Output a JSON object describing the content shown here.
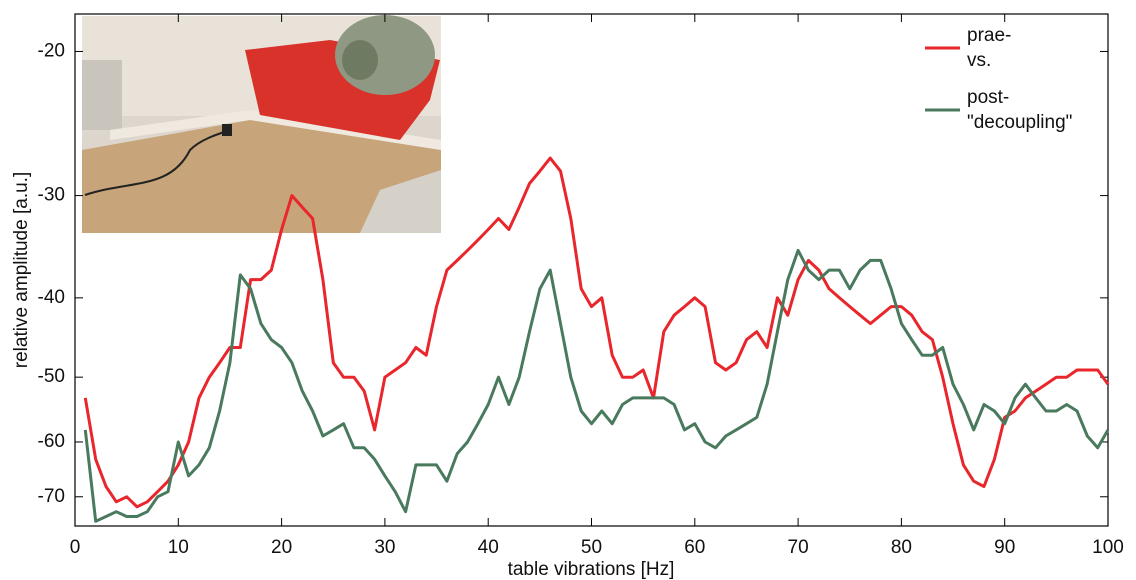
{
  "chart_data": {
    "type": "line",
    "x_label": "table vibrations [Hz]",
    "y_label": "relative amplitude  [a.u.]",
    "x": [
      1,
      2,
      3,
      4,
      5,
      6,
      7,
      8,
      9,
      10,
      11,
      12,
      13,
      14,
      15,
      16,
      17,
      18,
      19,
      20,
      21,
      22,
      23,
      24,
      25,
      26,
      27,
      28,
      29,
      30,
      31,
      32,
      33,
      34,
      35,
      36,
      37,
      38,
      39,
      40,
      41,
      42,
      43,
      44,
      45,
      46,
      47,
      48,
      49,
      50,
      51,
      52,
      53,
      54,
      55,
      56,
      57,
      58,
      59,
      60,
      61,
      62,
      63,
      64,
      65,
      66,
      67,
      68,
      69,
      70,
      71,
      72,
      73,
      74,
      75,
      76,
      77,
      78,
      79,
      80,
      81,
      82,
      83,
      84,
      85,
      86,
      87,
      88,
      89,
      90,
      91,
      92,
      93,
      94,
      95,
      96,
      97,
      98,
      99,
      100
    ],
    "series": [
      {
        "name": "prae-",
        "legend_note": "vs.",
        "color": "#e8262b",
        "values": [
          -53,
          -63,
          -68,
          -71,
          -70,
          -72,
          -71,
          -69,
          -67,
          -64,
          -60,
          -53,
          -50,
          -48,
          -46,
          -46,
          -38,
          -38,
          -37,
          -33,
          -30,
          -31,
          -32,
          -38,
          -48,
          -50,
          -50,
          -52,
          -58,
          -50,
          -49,
          -48,
          -46,
          -47,
          -41,
          -37,
          -36,
          -35,
          -34,
          -33,
          -32,
          -33,
          -31,
          -29,
          -28,
          -27,
          -28,
          -32,
          -39,
          -41,
          -40,
          -47,
          -50,
          -50,
          -49,
          -53,
          -44,
          -42,
          -41,
          -40,
          -41,
          -48,
          -49,
          -48,
          -45,
          -44,
          -46,
          -40,
          -42,
          -38,
          -36,
          -37,
          -39,
          -40,
          -41,
          -42,
          -43,
          -42,
          -41,
          -41,
          -42,
          -44,
          -45,
          -50,
          -57,
          -64,
          -67,
          -68,
          -63,
          -56,
          -55,
          -53,
          -52,
          -51,
          -50,
          -50,
          -49,
          -49,
          -49,
          -51
        ]
      },
      {
        "name": "post-",
        "legend_note": "\"decoupling\"",
        "color": "#4a7a5e",
        "values": [
          -58,
          -75,
          -74,
          -73,
          -74,
          -74,
          -73,
          -70,
          -69,
          -60,
          -66,
          -64,
          -61,
          -55,
          -48,
          -37.5,
          -39,
          -43,
          -45,
          -46,
          -48,
          -52,
          -55,
          -59,
          -58,
          -57,
          -61,
          -61,
          -63,
          -66,
          -69,
          -73,
          -64,
          -64,
          -64,
          -67,
          -62,
          -60,
          -57,
          -54,
          -50,
          -54,
          -50,
          -44,
          -39,
          -37,
          -43,
          -50,
          -55,
          -57,
          -55,
          -57,
          -54,
          -53,
          -53,
          -53,
          -53,
          -54,
          -58,
          -57,
          -60,
          -61,
          -59,
          -58,
          -57,
          -56,
          -51,
          -44,
          -38,
          -35,
          -37,
          -38,
          -37,
          -37,
          -39,
          -37,
          -36,
          -36,
          -39,
          -43,
          -45,
          -47,
          -47,
          -46,
          -51,
          -54,
          -58,
          -54,
          -55,
          -57,
          -53,
          -51,
          -53,
          -55,
          -55,
          -54,
          -55,
          -59,
          -61,
          -58
        ]
      }
    ],
    "xlim": [
      0,
      100
    ],
    "xticks": [
      0,
      10,
      20,
      30,
      40,
      50,
      60,
      70,
      80,
      90,
      100
    ],
    "ylim": [
      -76,
      -18
    ],
    "yticks": [
      -20,
      -30,
      -40,
      -50,
      -60,
      -70
    ],
    "log_scale": true,
    "grid": false,
    "legend": "upper right"
  }
}
